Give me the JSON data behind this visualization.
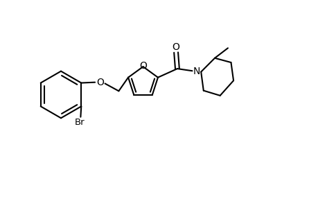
{
  "background_color": "#ffffff",
  "line_width": 1.5,
  "figsize": [
    4.6,
    3.0
  ],
  "dpi": 100,
  "bond_color": "black",
  "xlim": [
    0,
    10.0
  ],
  "ylim": [
    0,
    6.5
  ]
}
